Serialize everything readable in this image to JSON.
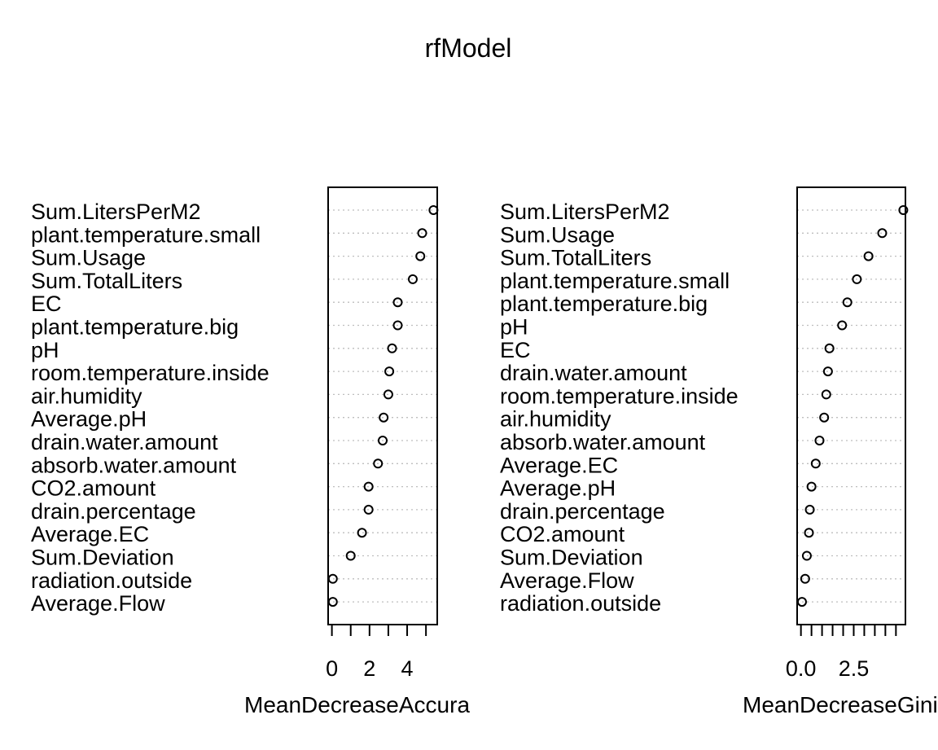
{
  "title": "rfModel",
  "chart_data": [
    {
      "type": "scatter",
      "xlabel": "MeanDecreaseAccuracy",
      "xticks": [
        0,
        2,
        4
      ],
      "xlim": [
        -0.2,
        5.6
      ],
      "grid": "dotted horizontal lines per variable",
      "labels": [
        "Sum.LitersPerM2",
        "plant.temperature.small",
        "Sum.Usage",
        "Sum.TotalLiters",
        "EC",
        "plant.temperature.big",
        "pH",
        "room.temperature.inside",
        "air.humidity",
        "Average.pH",
        "drain.water.amount",
        "absorb.water.amount",
        "CO2.amount",
        "drain.percentage",
        "Average.EC",
        "Sum.Deviation",
        "radiation.outside",
        "Average.Flow"
      ],
      "values": [
        5.4,
        4.8,
        4.7,
        4.3,
        3.5,
        3.5,
        3.2,
        3.05,
        3.0,
        2.75,
        2.7,
        2.45,
        1.95,
        1.95,
        1.6,
        1.0,
        0.05,
        0.05
      ]
    },
    {
      "type": "scatter",
      "xlabel": "MeanDecreaseGini",
      "xticks": [
        0.0,
        2.5
      ],
      "xlim": [
        -0.18,
        4.95
      ],
      "grid": "dotted horizontal lines per variable",
      "labels": [
        "Sum.LitersPerM2",
        "Sum.Usage",
        "Sum.TotalLiters",
        "plant.temperature.small",
        "plant.temperature.big",
        "pH",
        "EC",
        "drain.water.amount",
        "room.temperature.inside",
        "air.humidity",
        "absorb.water.amount",
        "Average.EC",
        "Average.pH",
        "drain.percentage",
        "CO2.amount",
        "Sum.Deviation",
        "Average.Flow",
        "radiation.outside"
      ],
      "values": [
        4.85,
        3.85,
        3.2,
        2.65,
        2.2,
        1.95,
        1.35,
        1.28,
        1.2,
        1.1,
        0.88,
        0.7,
        0.5,
        0.42,
        0.38,
        0.28,
        0.2,
        0.05
      ]
    }
  ]
}
